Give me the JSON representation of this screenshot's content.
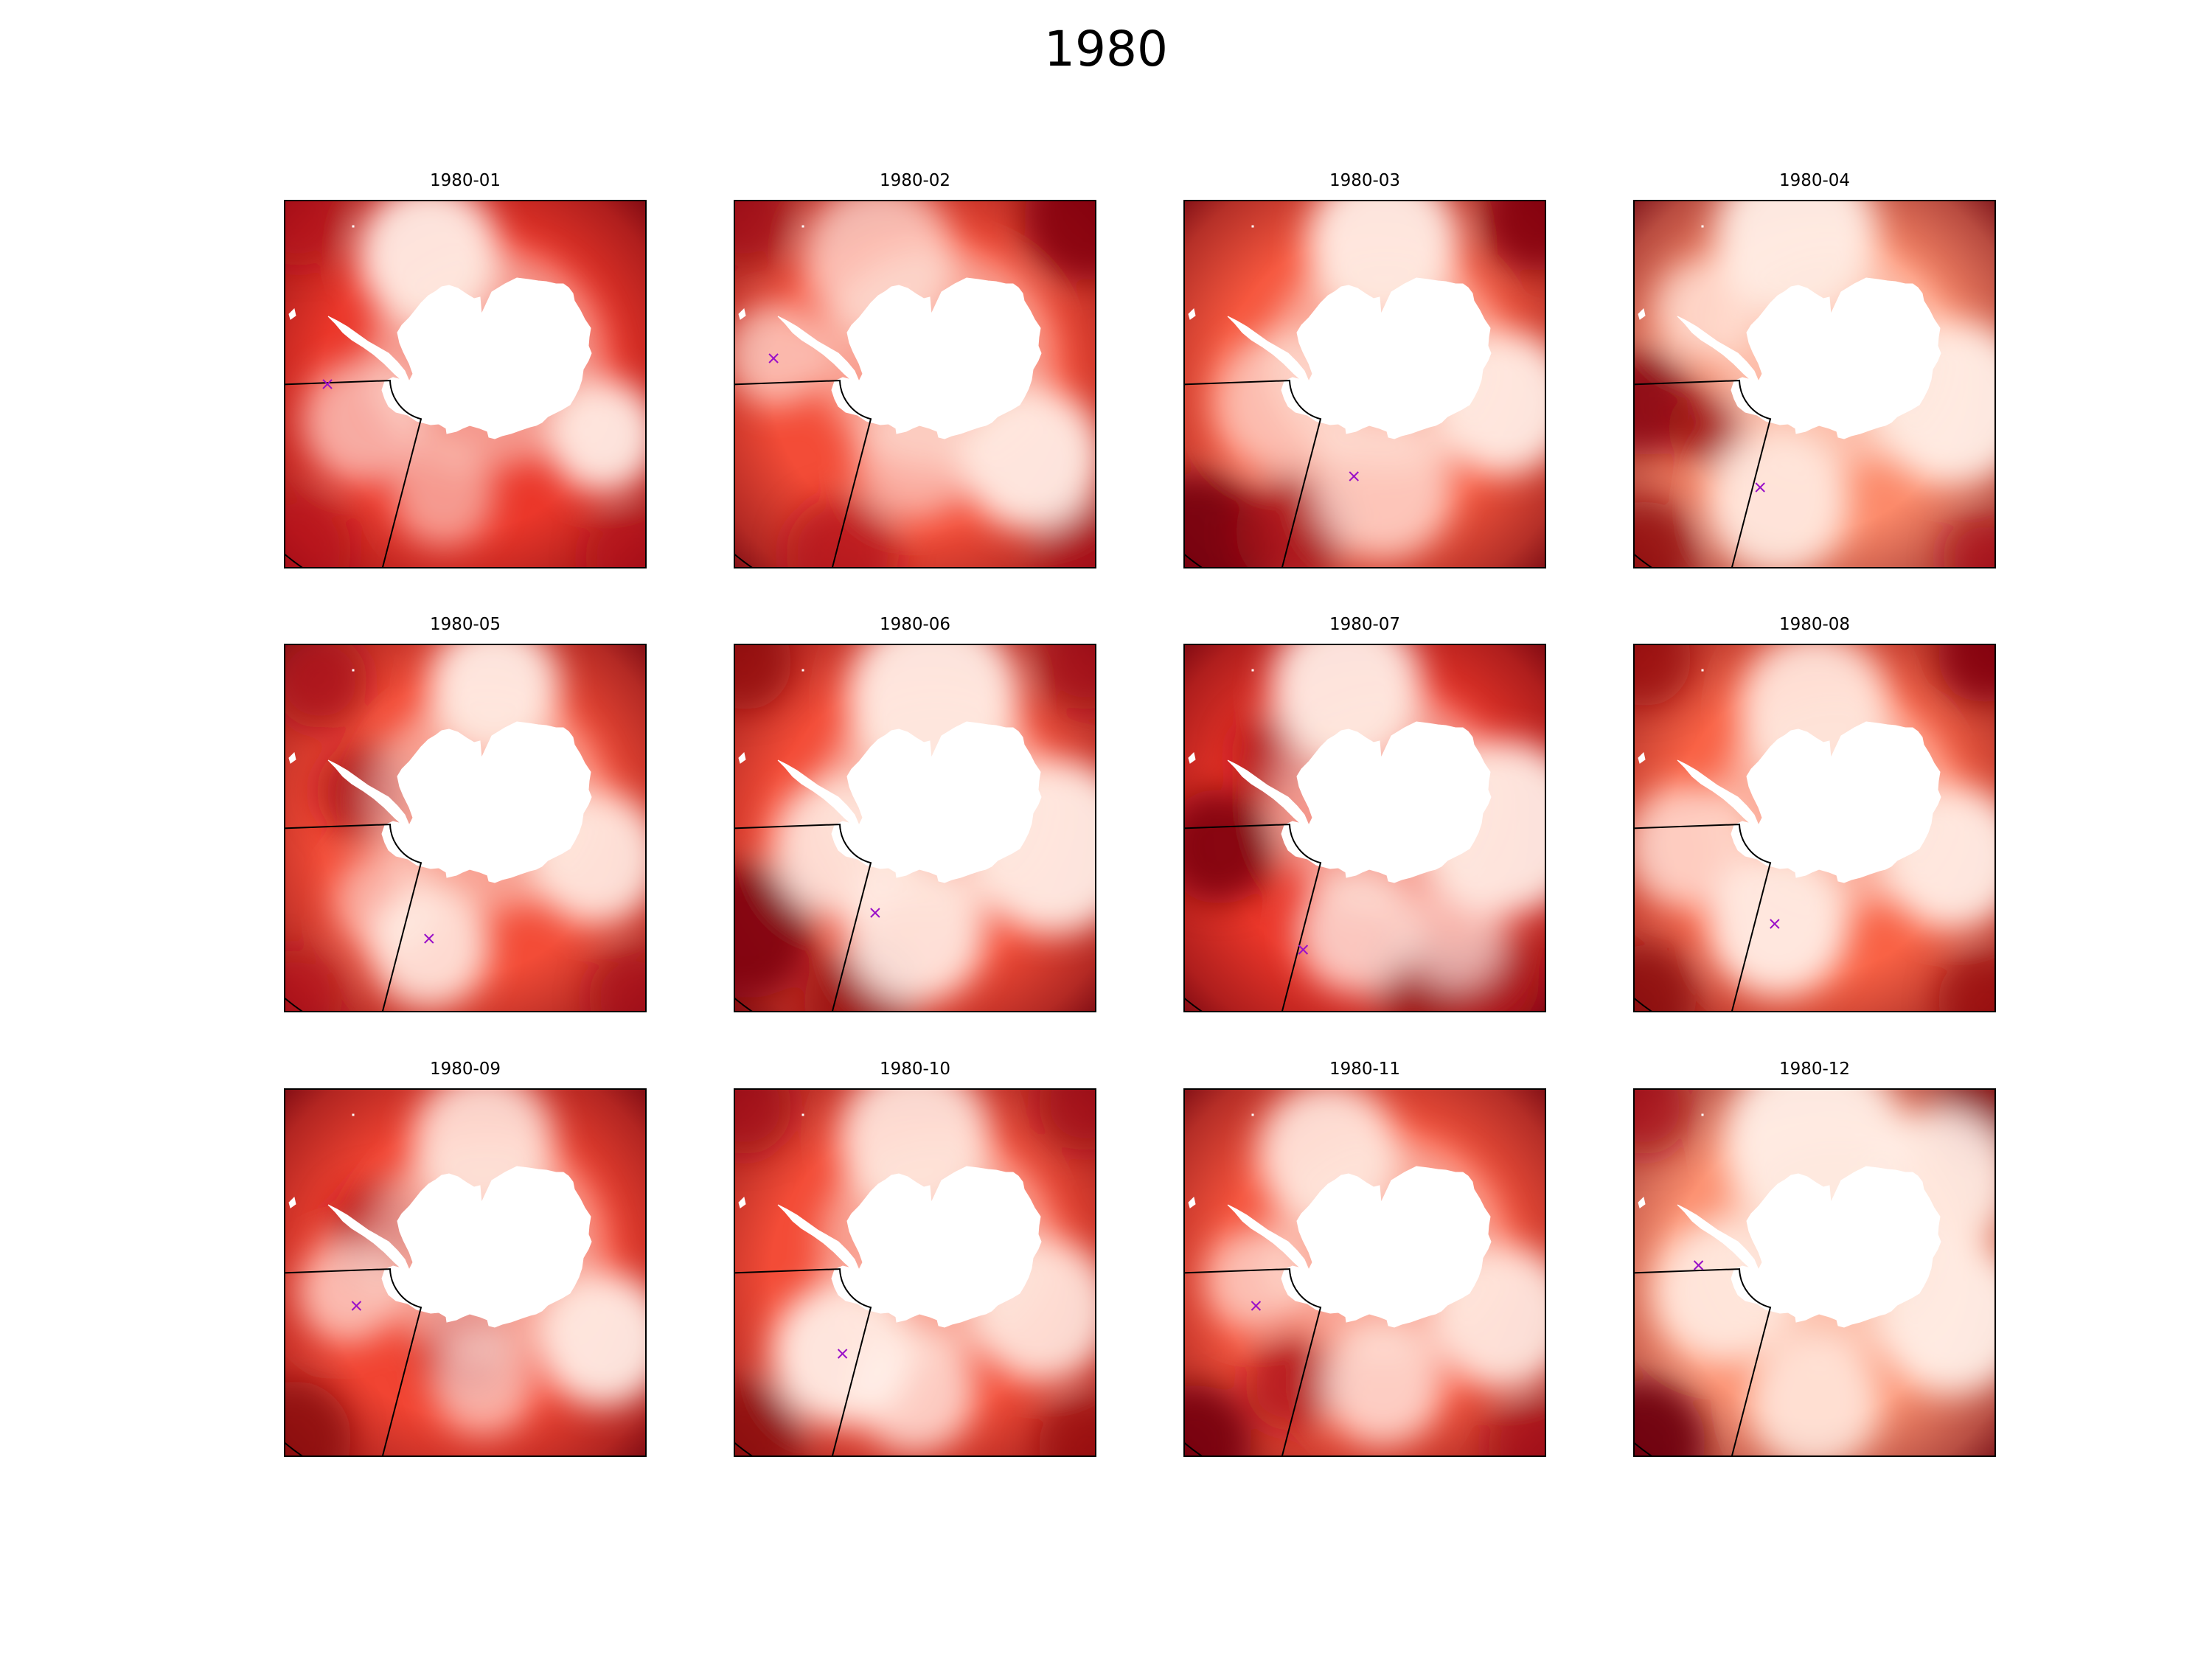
{
  "figure": {
    "title": "1980"
  },
  "colormap": {
    "name": "Reds",
    "stops": [
      "#fff5f0",
      "#fee0d2",
      "#fcbba1",
      "#fc9272",
      "#fb6a4a",
      "#ef3b2c",
      "#cb181d",
      "#a50f15",
      "#67000d"
    ]
  },
  "colors": {
    "land": "#ffffff",
    "sector_outline": "#000000",
    "marker": "#9a10c8",
    "frame": "#000000"
  },
  "panels": [
    {
      "title": "1980-01",
      "base_intensity": 0.64,
      "pale_spots": [
        [
          0.4,
          0.15,
          0.95,
          0.14
        ],
        [
          0.88,
          0.64,
          0.95,
          0.11
        ],
        [
          0.22,
          0.6,
          0.45,
          0.12
        ],
        [
          0.44,
          0.8,
          0.3,
          0.1
        ]
      ],
      "dark_spots": [
        [
          0.04,
          0.05,
          0.4,
          0.1
        ],
        [
          0.03,
          0.95,
          0.35,
          0.12
        ],
        [
          0.96,
          0.97,
          0.4,
          0.1
        ]
      ],
      "marker": [
        0.12,
        0.5
      ]
    },
    {
      "title": "1980-02",
      "base_intensity": 0.58,
      "pale_spots": [
        [
          0.82,
          0.7,
          0.95,
          0.14
        ],
        [
          0.4,
          0.16,
          0.55,
          0.15
        ],
        [
          0.12,
          0.42,
          0.5,
          0.1
        ],
        [
          0.5,
          0.7,
          0.4,
          0.12
        ]
      ],
      "dark_spots": [
        [
          0.97,
          0.05,
          0.8,
          0.13
        ],
        [
          0.03,
          0.05,
          0.6,
          0.1
        ],
        [
          0.3,
          0.96,
          0.45,
          0.12
        ],
        [
          0.97,
          0.95,
          0.5,
          0.1
        ]
      ],
      "marker": [
        0.11,
        0.43
      ]
    },
    {
      "title": "1980-03",
      "base_intensity": 0.55,
      "pale_spots": [
        [
          0.55,
          0.12,
          0.95,
          0.15
        ],
        [
          0.88,
          0.55,
          0.95,
          0.14
        ],
        [
          0.28,
          0.55,
          0.5,
          0.14
        ],
        [
          0.55,
          0.78,
          0.6,
          0.14
        ]
      ],
      "dark_spots": [
        [
          0.97,
          0.05,
          0.8,
          0.11
        ],
        [
          0.04,
          0.95,
          0.9,
          0.16
        ],
        [
          0.3,
          0.9,
          0.6,
          0.12
        ]
      ],
      "marker": [
        0.47,
        0.75
      ]
    },
    {
      "title": "1980-04",
      "base_intensity": 0.4,
      "pale_spots": [
        [
          0.45,
          0.1,
          0.95,
          0.16
        ],
        [
          0.88,
          0.55,
          0.95,
          0.16
        ],
        [
          0.4,
          0.82,
          0.85,
          0.14
        ],
        [
          0.2,
          0.3,
          0.6,
          0.1
        ]
      ],
      "dark_spots": [
        [
          0.03,
          0.55,
          0.8,
          0.11
        ],
        [
          0.2,
          0.62,
          0.65,
          0.08
        ],
        [
          0.03,
          0.96,
          0.7,
          0.11
        ],
        [
          0.97,
          0.97,
          0.5,
          0.09
        ]
      ],
      "marker": [
        0.35,
        0.78
      ]
    },
    {
      "title": "1980-05",
      "base_intensity": 0.58,
      "pale_spots": [
        [
          0.58,
          0.12,
          0.95,
          0.13
        ],
        [
          0.86,
          0.58,
          0.9,
          0.13
        ],
        [
          0.4,
          0.82,
          0.85,
          0.12
        ],
        [
          0.28,
          0.7,
          0.4,
          0.1
        ]
      ],
      "dark_spots": [
        [
          0.1,
          0.1,
          0.55,
          0.1
        ],
        [
          0.22,
          0.4,
          0.6,
          0.1
        ],
        [
          0.97,
          0.96,
          0.55,
          0.1
        ],
        [
          0.03,
          0.96,
          0.4,
          0.1
        ]
      ],
      "marker": [
        0.4,
        0.8
      ]
    },
    {
      "title": "1980-06",
      "base_intensity": 0.58,
      "pale_spots": [
        [
          0.55,
          0.15,
          0.95,
          0.17
        ],
        [
          0.88,
          0.55,
          0.95,
          0.17
        ],
        [
          0.3,
          0.55,
          0.85,
          0.14
        ],
        [
          0.5,
          0.78,
          0.9,
          0.14
        ]
      ],
      "dark_spots": [
        [
          0.04,
          0.78,
          0.85,
          0.14
        ],
        [
          0.03,
          0.05,
          0.7,
          0.1
        ],
        [
          0.97,
          0.05,
          0.6,
          0.1
        ],
        [
          0.35,
          0.97,
          0.7,
          0.12
        ]
      ],
      "marker": [
        0.39,
        0.73
      ]
    },
    {
      "title": "1980-07",
      "base_intensity": 0.64,
      "pale_spots": [
        [
          0.45,
          0.12,
          0.95,
          0.15
        ],
        [
          0.88,
          0.5,
          0.95,
          0.17
        ],
        [
          0.48,
          0.78,
          0.7,
          0.12
        ],
        [
          0.75,
          0.8,
          0.55,
          0.1
        ]
      ],
      "dark_spots": [
        [
          0.1,
          0.55,
          0.85,
          0.12
        ],
        [
          0.25,
          0.3,
          0.55,
          0.09
        ],
        [
          0.65,
          0.93,
          0.7,
          0.1
        ],
        [
          0.85,
          0.92,
          0.55,
          0.1
        ]
      ],
      "marker": [
        0.33,
        0.83
      ]
    },
    {
      "title": "1980-08",
      "base_intensity": 0.52,
      "pale_spots": [
        [
          0.5,
          0.18,
          0.85,
          0.15
        ],
        [
          0.88,
          0.58,
          0.95,
          0.14
        ],
        [
          0.4,
          0.76,
          0.95,
          0.14
        ],
        [
          0.15,
          0.55,
          0.65,
          0.12
        ]
      ],
      "dark_spots": [
        [
          0.97,
          0.03,
          0.8,
          0.1
        ],
        [
          0.03,
          0.04,
          0.65,
          0.1
        ],
        [
          0.03,
          0.96,
          0.75,
          0.11
        ],
        [
          0.97,
          0.97,
          0.65,
          0.1
        ]
      ],
      "marker": [
        0.39,
        0.76
      ]
    },
    {
      "title": "1980-09",
      "base_intensity": 0.6,
      "pale_spots": [
        [
          0.55,
          0.15,
          0.8,
          0.14
        ],
        [
          0.88,
          0.68,
          0.95,
          0.13
        ],
        [
          0.18,
          0.55,
          0.55,
          0.1
        ],
        [
          0.55,
          0.8,
          0.45,
          0.1
        ]
      ],
      "dark_spots": [
        [
          0.03,
          0.95,
          0.75,
          0.12
        ],
        [
          0.5,
          0.7,
          0.4,
          0.1
        ],
        [
          0.25,
          0.38,
          0.5,
          0.1
        ]
      ],
      "marker": [
        0.2,
        0.59
      ]
    },
    {
      "title": "1980-10",
      "base_intensity": 0.58,
      "pale_spots": [
        [
          0.5,
          0.14,
          0.85,
          0.15
        ],
        [
          0.85,
          0.6,
          0.85,
          0.14
        ],
        [
          0.3,
          0.72,
          0.95,
          0.14
        ],
        [
          0.5,
          0.82,
          0.7,
          0.12
        ]
      ],
      "dark_spots": [
        [
          0.03,
          0.05,
          0.6,
          0.1
        ],
        [
          0.97,
          0.04,
          0.6,
          0.1
        ],
        [
          0.03,
          0.95,
          0.75,
          0.12
        ],
        [
          0.97,
          0.97,
          0.65,
          0.1
        ]
      ],
      "marker": [
        0.3,
        0.72
      ]
    },
    {
      "title": "1980-11",
      "base_intensity": 0.56,
      "pale_spots": [
        [
          0.4,
          0.18,
          0.85,
          0.14
        ],
        [
          0.88,
          0.62,
          0.9,
          0.14
        ],
        [
          0.55,
          0.8,
          0.7,
          0.12
        ],
        [
          0.2,
          0.52,
          0.55,
          0.1
        ]
      ],
      "dark_spots": [
        [
          0.03,
          0.96,
          0.9,
          0.12
        ],
        [
          0.3,
          0.8,
          0.55,
          0.1
        ],
        [
          0.97,
          0.97,
          0.55,
          0.1
        ]
      ],
      "marker": [
        0.2,
        0.59
      ]
    },
    {
      "title": "1980-12",
      "base_intensity": 0.38,
      "pale_spots": [
        [
          0.5,
          0.15,
          0.95,
          0.18
        ],
        [
          0.85,
          0.25,
          0.9,
          0.14
        ],
        [
          0.88,
          0.62,
          0.95,
          0.15
        ],
        [
          0.25,
          0.55,
          0.85,
          0.14
        ],
        [
          0.5,
          0.85,
          0.75,
          0.13
        ]
      ],
      "dark_spots": [
        [
          0.03,
          0.96,
          0.95,
          0.13
        ],
        [
          0.97,
          0.04,
          0.75,
          0.1
        ],
        [
          0.03,
          0.05,
          0.55,
          0.1
        ]
      ],
      "marker": [
        0.18,
        0.48
      ]
    }
  ]
}
